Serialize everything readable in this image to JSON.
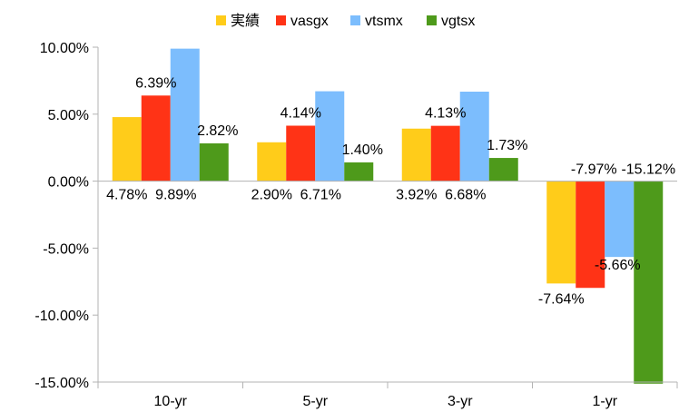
{
  "chart_data": {
    "type": "bar",
    "categories": [
      "10-yr",
      "5-yr",
      "3-yr",
      "1-yr"
    ],
    "series": [
      {
        "name": "実績",
        "color": "#ffcc1a",
        "values": [
          4.78,
          2.9,
          3.92,
          -7.64
        ],
        "labels": [
          "4.78%",
          "2.90%",
          "3.92%",
          "-7.64%"
        ]
      },
      {
        "name": "vasgx",
        "color": "#ff3316",
        "values": [
          6.39,
          4.14,
          4.13,
          -7.97
        ],
        "labels": [
          "6.39%",
          "4.14%",
          "4.13%",
          "-7.97%"
        ]
      },
      {
        "name": "vtsmx",
        "color": "#7cbdfd",
        "values": [
          9.89,
          6.71,
          6.68,
          -5.66
        ],
        "labels": [
          "9.89%",
          "6.71%",
          "6.68%",
          "-5.66%"
        ]
      },
      {
        "name": "vgtsx",
        "color": "#4e9a1b",
        "values": [
          2.82,
          1.4,
          1.73,
          -15.12
        ],
        "labels": [
          "2.82%",
          "1.40%",
          "1.73%",
          "-15.12%"
        ]
      }
    ],
    "y_ticks": [
      "10.00%",
      "5.00%",
      "0.00%",
      "-5.00%",
      "-10.00%",
      "-15.00%"
    ],
    "ylim": [
      -15,
      10
    ],
    "grid": false,
    "legend": "top"
  }
}
